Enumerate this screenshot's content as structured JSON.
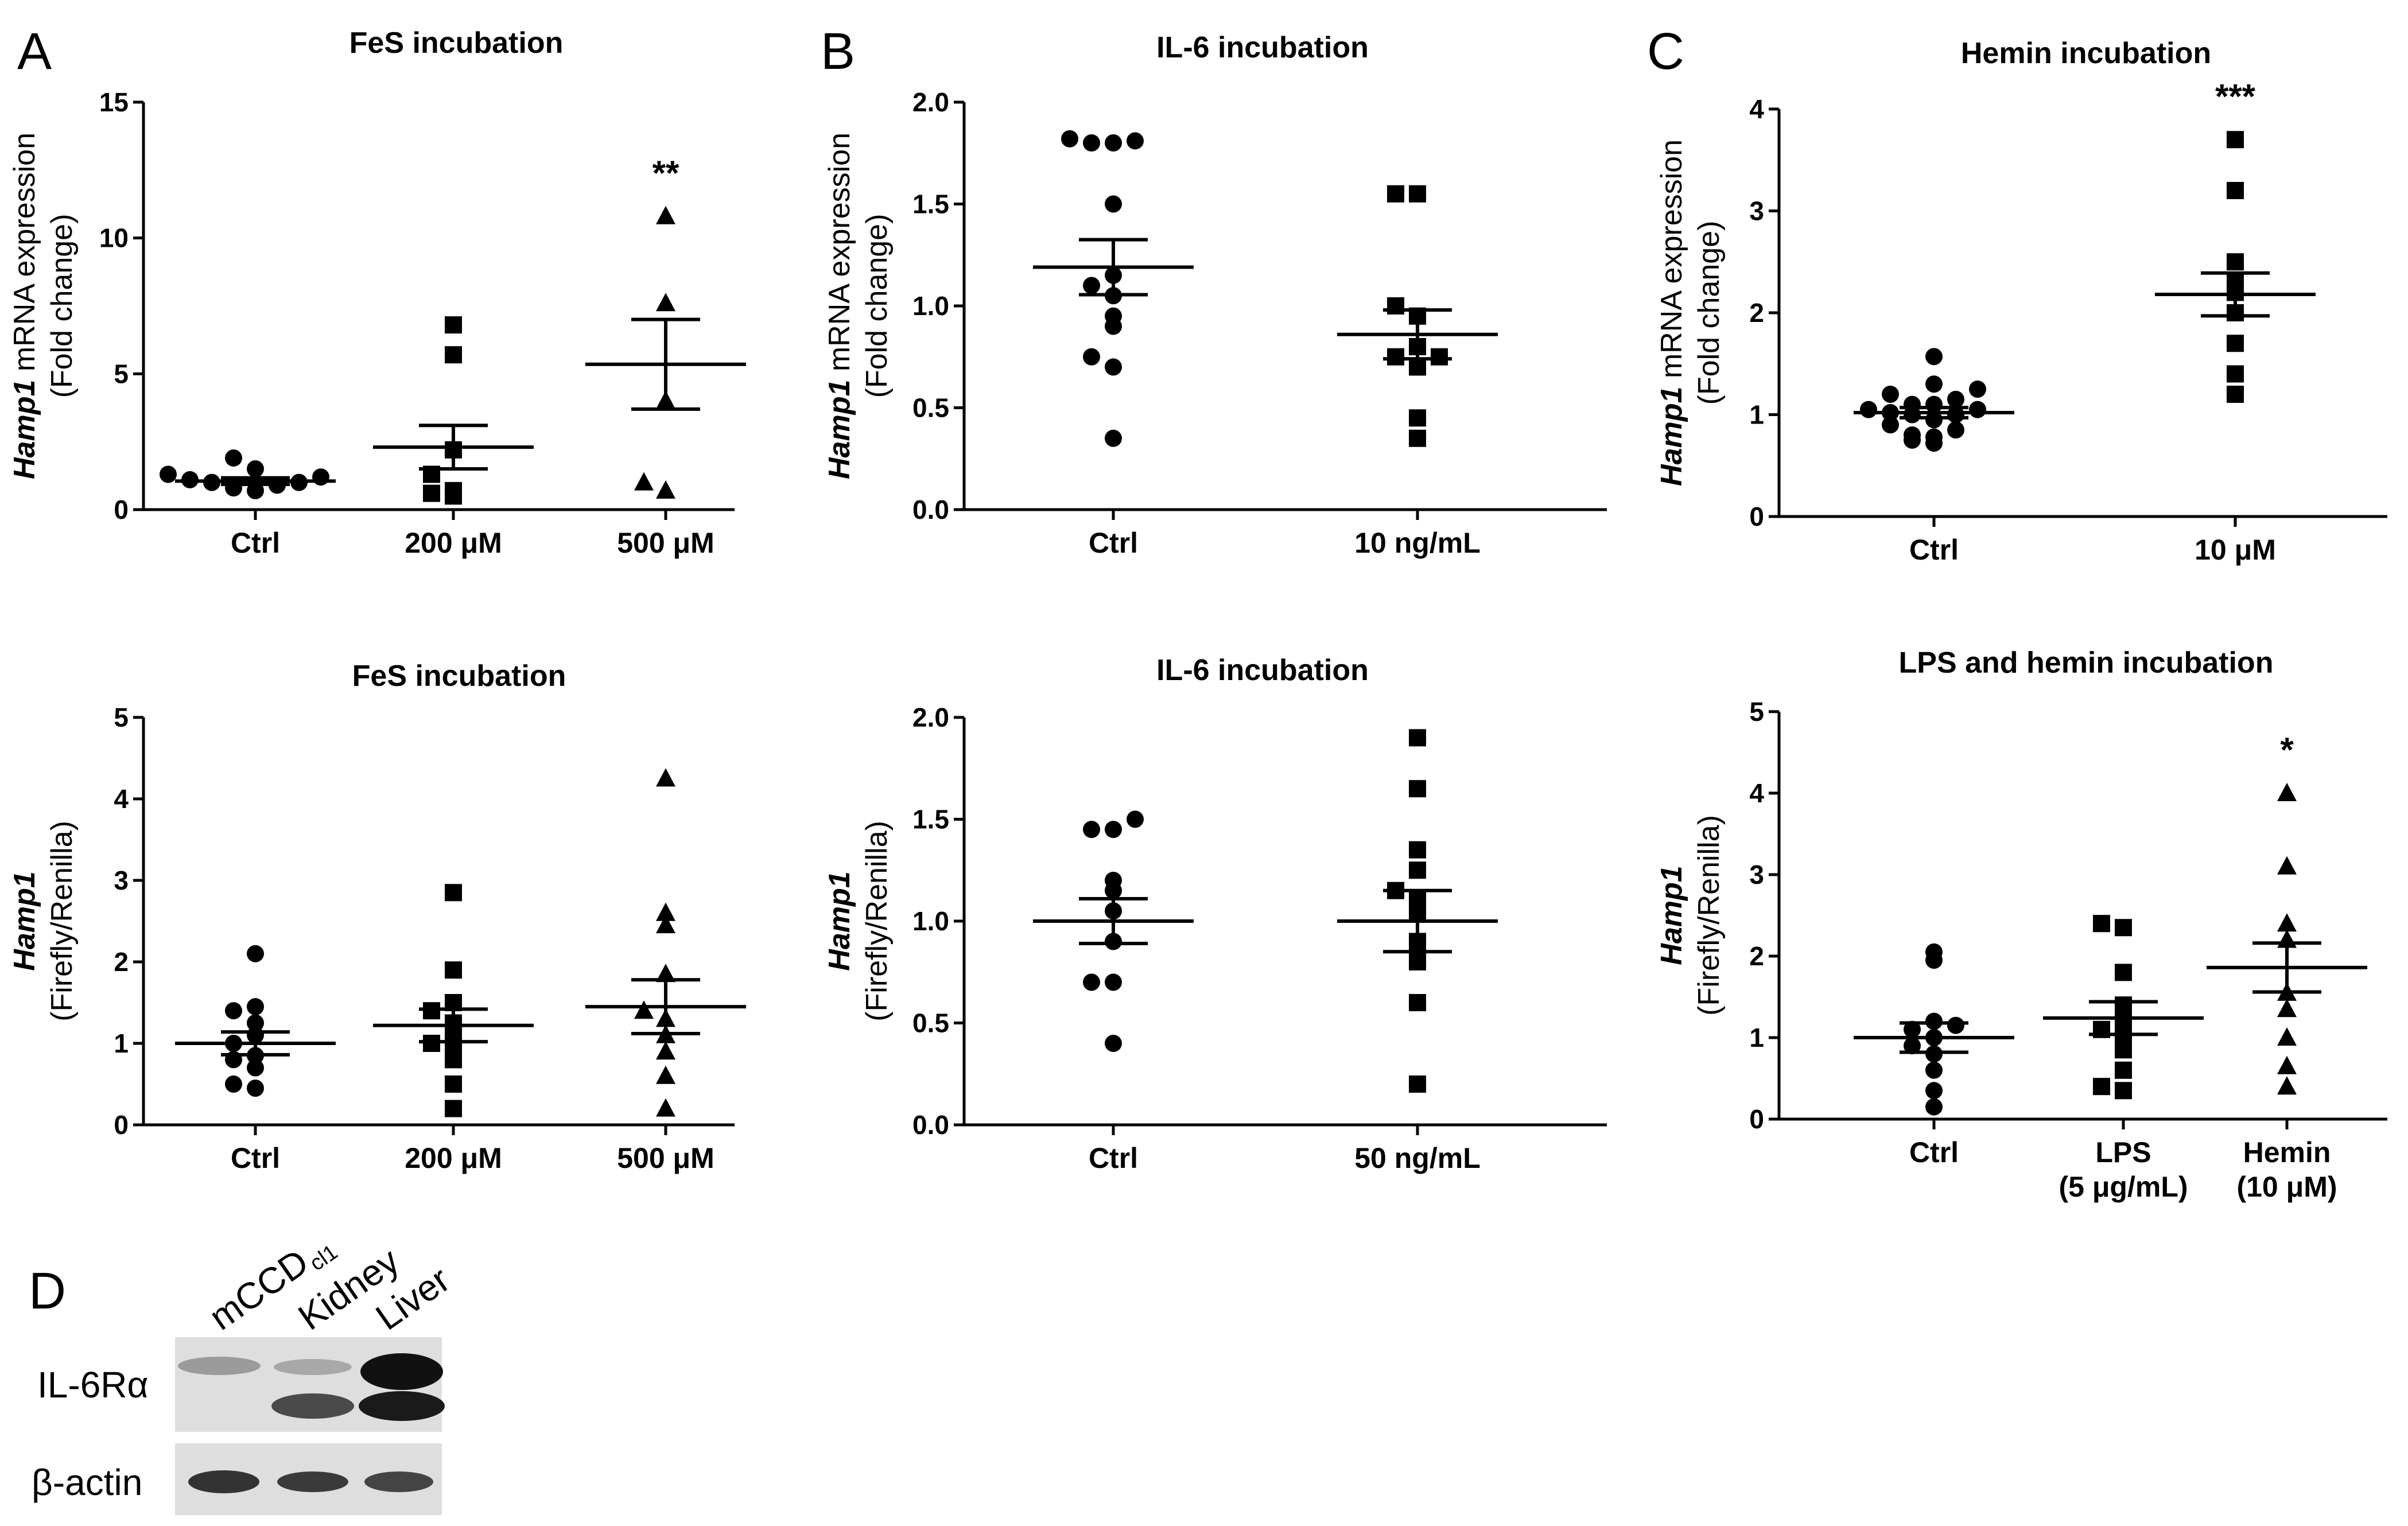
{
  "panel_letters": {
    "a": "A",
    "b": "B",
    "c": "C",
    "d": "D"
  },
  "chart_data": [
    {
      "id": "A1",
      "type": "scatter",
      "title": "FeS incubation",
      "ylabel_italic": "Hamp1",
      "ylabel_rest": " mRNA expression",
      "ylabel_line2": "(Fold change)",
      "ylim": [
        0,
        15
      ],
      "yticks": [
        0,
        5,
        10,
        15
      ],
      "ytick_labels": [
        "0",
        "5",
        "10",
        "15"
      ],
      "categories": [
        "Ctrl",
        "200 μM",
        "500 μM"
      ],
      "category_sublabels": [
        "",
        "",
        ""
      ],
      "markers": [
        "circle",
        "square",
        "triangle"
      ],
      "points": [
        [
          0.7,
          0.8,
          0.9,
          1.0,
          1.0,
          1.1,
          1.2,
          1.3,
          1.5,
          1.9
        ],
        [
          0.5,
          0.6,
          0.7,
          1.3,
          2.2,
          5.7,
          6.8
        ],
        [
          0.7,
          1.0,
          4.0,
          7.6,
          10.8
        ]
      ],
      "means": [
        1.05,
        2.3,
        5.35
      ],
      "sem": [
        0.12,
        0.8,
        1.65
      ],
      "significance": [
        "",
        "",
        "**"
      ]
    },
    {
      "id": "B1",
      "type": "scatter",
      "title": "IL-6 incubation",
      "ylabel_italic": "Hamp1",
      "ylabel_rest": " mRNA expression",
      "ylabel_line2": "(Fold change)",
      "ylim": [
        0,
        2.0
      ],
      "yticks": [
        0,
        0.5,
        1.0,
        1.5,
        2.0
      ],
      "ytick_labels": [
        "0.0",
        "0.5",
        "1.0",
        "1.5",
        "2.0"
      ],
      "categories": [
        "Ctrl",
        "10 ng/mL"
      ],
      "category_sublabels": [
        "",
        ""
      ],
      "markers": [
        "circle",
        "square"
      ],
      "points": [
        [
          0.35,
          0.7,
          0.75,
          0.9,
          0.95,
          1.05,
          1.1,
          1.15,
          1.5,
          1.8,
          1.8,
          1.81,
          1.82
        ],
        [
          0.35,
          0.45,
          0.7,
          0.75,
          0.75,
          0.8,
          0.95,
          1.0,
          1.55,
          1.55
        ]
      ],
      "means": [
        1.19,
        0.86
      ],
      "sem": [
        0.135,
        0.12
      ],
      "significance": [
        "",
        ""
      ]
    },
    {
      "id": "C1",
      "type": "scatter",
      "title": "Hemin incubation",
      "ylabel_italic": "Hamp1",
      "ylabel_rest": " mRNA expression",
      "ylabel_line2": "(Fold change)",
      "ylim": [
        0,
        4
      ],
      "yticks": [
        0,
        1,
        2,
        3,
        4
      ],
      "ytick_labels": [
        "0",
        "1",
        "2",
        "3",
        "4"
      ],
      "categories": [
        "Ctrl",
        "10 μM"
      ],
      "category_sublabels": [
        "",
        ""
      ],
      "markers": [
        "circle",
        "square"
      ],
      "points": [
        [
          0.72,
          0.75,
          0.78,
          0.8,
          0.85,
          0.9,
          0.95,
          1.0,
          1.0,
          1.02,
          1.05,
          1.05,
          1.1,
          1.1,
          1.15,
          1.2,
          1.25,
          1.3,
          1.57
        ],
        [
          1.2,
          1.4,
          1.7,
          2.0,
          2.2,
          2.3,
          2.5,
          3.2,
          3.7
        ]
      ],
      "means": [
        1.02,
        2.18
      ],
      "sem": [
        0.05,
        0.21
      ],
      "significance": [
        "",
        "***"
      ]
    },
    {
      "id": "A2",
      "type": "scatter",
      "title": "FeS incubation",
      "ylabel_italic": "Hamp1",
      "ylabel_rest": "",
      "ylabel_line2": "(Firefly/Renilla)",
      "ylim": [
        0,
        5
      ],
      "yticks": [
        0,
        1,
        2,
        3,
        4,
        5
      ],
      "ytick_labels": [
        "0",
        "1",
        "2",
        "3",
        "4",
        "5"
      ],
      "categories": [
        "Ctrl",
        "200 μM",
        "500 μM"
      ],
      "category_sublabels": [
        "",
        "",
        ""
      ],
      "markers": [
        "circle",
        "square",
        "triangle"
      ],
      "points": [
        [
          0.45,
          0.5,
          0.7,
          0.8,
          0.85,
          1.0,
          1.1,
          1.25,
          1.4,
          1.45,
          2.1
        ],
        [
          0.2,
          0.5,
          0.8,
          0.9,
          1.0,
          1.1,
          1.25,
          1.4,
          1.5,
          1.9,
          2.85
        ],
        [
          0.2,
          0.6,
          0.9,
          1.1,
          1.3,
          1.4,
          1.85,
          2.45,
          2.6,
          4.25
        ]
      ],
      "means": [
        1.0,
        1.22,
        1.45
      ],
      "sem": [
        0.14,
        0.2,
        0.33
      ],
      "significance": [
        "",
        "",
        ""
      ]
    },
    {
      "id": "B2",
      "type": "scatter",
      "title": "IL-6 incubation",
      "ylabel_italic": "Hamp1",
      "ylabel_rest": "",
      "ylabel_line2": "(Firefly/Renilla)",
      "ylim": [
        0,
        2.0
      ],
      "yticks": [
        0,
        0.5,
        1.0,
        1.5,
        2.0
      ],
      "ytick_labels": [
        "0.0",
        "0.5",
        "1.0",
        "1.5",
        "2.0"
      ],
      "categories": [
        "Ctrl",
        "50 ng/mL"
      ],
      "category_sublabels": [
        "",
        ""
      ],
      "markers": [
        "circle",
        "square"
      ],
      "points": [
        [
          0.4,
          0.7,
          0.7,
          0.9,
          1.05,
          1.15,
          1.2,
          1.45,
          1.45,
          1.5
        ],
        [
          0.2,
          0.6,
          0.8,
          0.9,
          1.05,
          1.1,
          1.15,
          1.25,
          1.35,
          1.65,
          1.9
        ]
      ],
      "means": [
        1.0,
        1.0
      ],
      "sem": [
        0.11,
        0.15
      ],
      "significance": [
        "",
        ""
      ]
    },
    {
      "id": "C2",
      "type": "scatter",
      "title": "LPS and hemin incubation",
      "ylabel_italic": "Hamp1",
      "ylabel_rest": "",
      "ylabel_line2": "(Firefly/Renilla)",
      "ylim": [
        0,
        5
      ],
      "yticks": [
        0,
        1,
        2,
        3,
        4,
        5
      ],
      "ytick_labels": [
        "0",
        "1",
        "2",
        "3",
        "4",
        "5"
      ],
      "categories": [
        "Ctrl",
        "LPS",
        "Hemin"
      ],
      "category_sublabels": [
        "",
        "(5 μg/mL)",
        "(10 μM)"
      ],
      "markers": [
        "circle",
        "square",
        "triangle"
      ],
      "points": [
        [
          0.15,
          0.35,
          0.6,
          0.8,
          0.9,
          1.0,
          1.1,
          1.15,
          1.2,
          1.95,
          2.05
        ],
        [
          0.35,
          0.4,
          0.6,
          0.85,
          1.0,
          1.1,
          1.2,
          1.4,
          1.8,
          2.35,
          2.4
        ],
        [
          0.4,
          0.65,
          1.0,
          1.35,
          1.55,
          2.2,
          2.4,
          3.1,
          4.0
        ]
      ],
      "means": [
        1.0,
        1.24,
        1.86
      ],
      "sem": [
        0.18,
        0.2,
        0.3
      ],
      "significance": [
        "",
        "",
        "*"
      ]
    }
  ],
  "blot": {
    "lanes": [
      "mCCD",
      "Kidney",
      "Liver"
    ],
    "lane1_subscript": "cl1",
    "rows": [
      "IL-6Rα",
      "β-actin"
    ]
  }
}
